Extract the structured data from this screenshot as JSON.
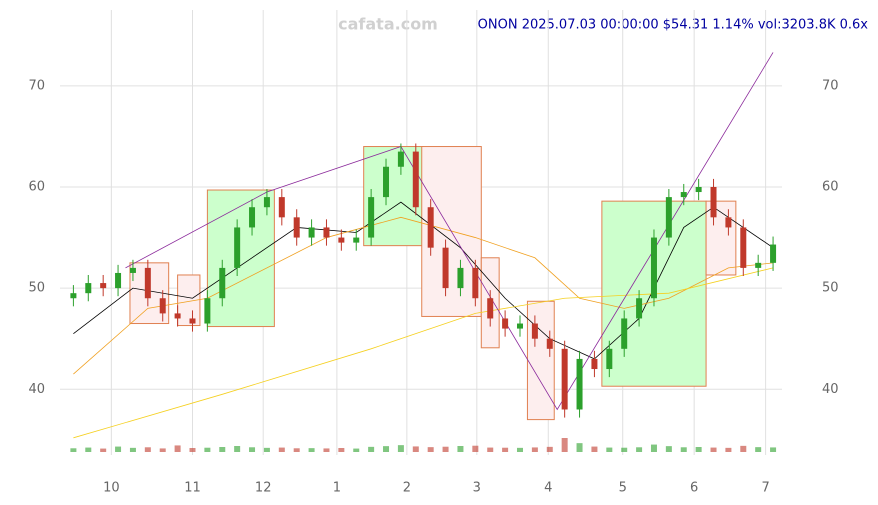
{
  "chart_data": {
    "type": "candlestick",
    "title": "ONON 2025.07.03 00:00:00 $54.31 1.14% vol:3203.8K 0.6x",
    "watermark": "cafata.com",
    "open": [
      49,
      49.5,
      50.5,
      50,
      51.5,
      52,
      49,
      47.5,
      47,
      46.5,
      49,
      52,
      56,
      58,
      59,
      57,
      55,
      56,
      55,
      54.5,
      55,
      59,
      62,
      63.5,
      58,
      54,
      50,
      52,
      49,
      47,
      46,
      46.5,
      45,
      44,
      38,
      43,
      42,
      44,
      47,
      49,
      55,
      59,
      59.5,
      60,
      57,
      56,
      52,
      52.5
    ],
    "high": [
      50.3,
      51.3,
      51.3,
      52.3,
      52.8,
      52.8,
      49.8,
      48.3,
      47.8,
      49.8,
      52.8,
      56.8,
      58.8,
      59.8,
      59.8,
      57.8,
      56.8,
      56.8,
      55.8,
      55.8,
      59.8,
      62.8,
      64.3,
      64.3,
      58.8,
      54.8,
      52.8,
      52.8,
      49.8,
      47.8,
      47.3,
      47.3,
      45.8,
      44.8,
      43.8,
      43.8,
      44.8,
      47.8,
      49.8,
      55.8,
      59.8,
      60.3,
      60.8,
      60.8,
      57.8,
      56.8,
      53.3,
      55.1
    ],
    "low": [
      48.2,
      48.7,
      49.2,
      49.2,
      50.7,
      48.2,
      46.7,
      46.2,
      45.7,
      45.7,
      48.2,
      51.2,
      55.2,
      57.2,
      56.2,
      54.2,
      54.2,
      54.2,
      53.7,
      53.7,
      54.2,
      58.2,
      61.2,
      57.2,
      53.2,
      49.2,
      49.2,
      48.2,
      46.2,
      45.2,
      45.2,
      44.2,
      43.2,
      37.2,
      37.2,
      41.2,
      41.2,
      43.2,
      46.2,
      48.2,
      54.2,
      58.2,
      58.7,
      56.2,
      55.2,
      51.2,
      51.2,
      51.7
    ],
    "close": [
      49.5,
      50.5,
      50,
      51.5,
      52,
      49,
      47.5,
      47,
      46.5,
      49,
      52,
      56,
      58,
      59,
      57,
      55,
      56,
      55,
      54.5,
      55,
      59,
      62,
      63.5,
      58,
      54,
      50,
      52,
      49,
      47,
      46,
      46.5,
      45,
      44,
      38,
      43,
      42,
      44,
      47,
      49,
      55,
      59,
      59.5,
      60,
      57,
      56,
      52,
      52.5,
      54.31
    ],
    "volume": [
      2600,
      3100,
      2400,
      3800,
      2900,
      3300,
      2500,
      4600,
      2800,
      3000,
      3500,
      4200,
      3300,
      2900,
      3100,
      2600,
      2700,
      2500,
      2800,
      2400,
      3600,
      4100,
      4800,
      3900,
      3400,
      3700,
      4200,
      4400,
      3100,
      3000,
      2900,
      3200,
      3600,
      9800,
      6200,
      3800,
      3100,
      3000,
      3300,
      5200,
      4100,
      3300,
      3500,
      3100,
      2900,
      4300,
      3400,
      3203.8
    ],
    "up_color": "#2ca02c",
    "down_color": "#c0392b",
    "lines": [
      {
        "color": "#000000",
        "x": [
          0,
          4,
          8,
          12,
          15,
          19,
          22,
          26,
          29,
          32,
          35,
          38,
          41,
          43,
          47
        ],
        "values": [
          45.5,
          50,
          49,
          53,
          56,
          55.5,
          58.5,
          54,
          49,
          45,
          43,
          47,
          56,
          58,
          54
        ]
      },
      {
        "color": "#f0a020",
        "x": [
          0,
          5,
          9,
          17,
          22,
          27,
          31,
          34,
          37,
          40,
          44,
          47
        ],
        "values": [
          41.5,
          48,
          49,
          55,
          57,
          55,
          53,
          49,
          48,
          49,
          52,
          52.5
        ]
      },
      {
        "color": "#f5d020",
        "x": [
          0,
          10,
          20,
          27,
          33,
          40,
          47
        ],
        "values": [
          35.2,
          39.5,
          44,
          47.5,
          49,
          49.5,
          52
        ]
      }
    ],
    "trendline": {
      "color": "#8b2a9b",
      "x": [
        3.5,
        13,
        22,
        32.5,
        47
      ],
      "values": [
        52,
        59.5,
        64,
        38,
        73.3
      ]
    },
    "boxes": [
      {
        "x": [
          9,
          13.5
        ],
        "values": [
          46.2,
          59.7
        ],
        "color": "#ccffcc"
      },
      {
        "x": [
          19.5,
          23.5
        ],
        "values": [
          54.2,
          64
        ],
        "color": "#ccffcc"
      },
      {
        "x": [
          35.5,
          42.5
        ],
        "values": [
          40.3,
          58.6
        ],
        "color": "#ccffcc"
      },
      {
        "x": [
          3.8,
          6.4
        ],
        "values": [
          46.5,
          52.5
        ],
        "color": "#fdeeee"
      },
      {
        "x": [
          7,
          8.5
        ],
        "values": [
          46.3,
          51.3
        ],
        "color": "#fdeeee"
      },
      {
        "x": [
          23.4,
          27.4
        ],
        "values": [
          47.2,
          64
        ],
        "color": "#fdeeee"
      },
      {
        "x": [
          27.4,
          28.6
        ],
        "values": [
          44.1,
          53
        ],
        "color": "#fdeeee"
      },
      {
        "x": [
          30.5,
          32.3
        ],
        "values": [
          37,
          48.7
        ],
        "color": "#fdeeee"
      },
      {
        "x": [
          42.5,
          44.5
        ],
        "values": [
          51.3,
          58.6
        ],
        "color": "#fdeeee"
      }
    ],
    "xlim": [
      -0.9,
      47.6
    ],
    "ylim": [
      33.5,
      77.5
    ],
    "xticks": [
      {
        "value": 2.55,
        "label": "10"
      },
      {
        "value": 8.0,
        "label": "11"
      },
      {
        "value": 12.75,
        "label": "12"
      },
      {
        "value": 17.7,
        "label": "1"
      },
      {
        "value": 22.4,
        "label": "2"
      },
      {
        "value": 27.1,
        "label": "3"
      },
      {
        "value": 31.9,
        "label": "4"
      },
      {
        "value": 36.9,
        "label": "5"
      },
      {
        "value": 41.7,
        "label": "6"
      },
      {
        "value": 46.5,
        "label": "7"
      }
    ],
    "yticks": [
      40,
      50,
      60,
      70
    ],
    "grid": true
  }
}
